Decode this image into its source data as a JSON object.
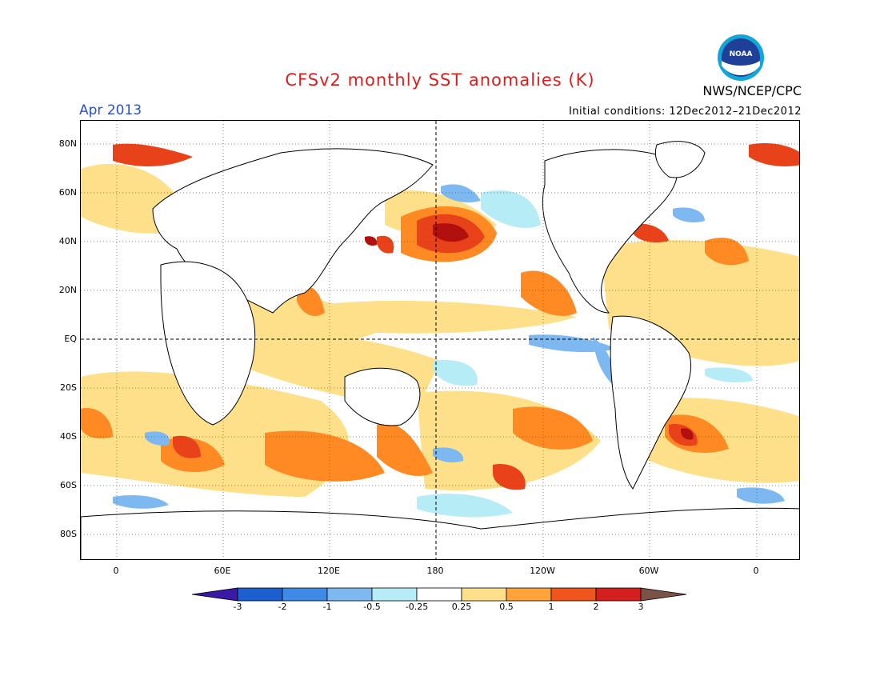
{
  "title": "CFSv2 monthly SST anomalies (K)",
  "month": "Apr 2013",
  "initial_conditions": "Initial conditions: 12Dec2012–21Dec2012",
  "agency": "NWS/NCEP/CPC",
  "logo_text": "NOAA",
  "lat_labels": [
    "80N",
    "60N",
    "40N",
    "20N",
    "EQ",
    "20S",
    "40S",
    "60S",
    "80S"
  ],
  "lon_labels": [
    "0",
    "60E",
    "120E",
    "180",
    "120W",
    "60W",
    "0"
  ],
  "colorbar": {
    "labels": [
      "-3",
      "-2",
      "-1",
      "-0.5",
      "-0.25",
      "0.25",
      "0.5",
      "1",
      "2",
      "3"
    ],
    "colors": [
      "#3a18a8",
      "#1c5fd0",
      "#3f8ae6",
      "#7db8f0",
      "#b6ecf5",
      "#ffffff",
      "#ffe08a",
      "#ffa33a",
      "#f0561c",
      "#d51e1e",
      "#a80e0e",
      "#7a5246"
    ]
  },
  "anomaly_colors": {
    "strong_warm": "#b20f0f",
    "warm": "#e8421a",
    "moderate_warm": "#ff8a24",
    "weak_warm": "#ffe08a",
    "weak_cool": "#b6ecf5",
    "moderate_cool": "#7db8f0",
    "cool": "#3f8ae6"
  }
}
